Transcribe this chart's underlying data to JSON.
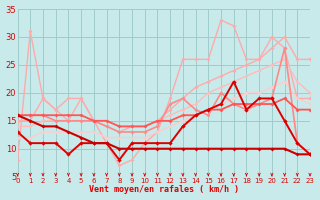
{
  "x": [
    0,
    1,
    2,
    3,
    4,
    5,
    6,
    7,
    8,
    9,
    10,
    11,
    12,
    13,
    14,
    15,
    16,
    17,
    18,
    19,
    20,
    21,
    22,
    23
  ],
  "lines": [
    {
      "y": [
        8,
        31,
        19,
        17,
        15,
        19,
        15,
        11,
        7,
        8,
        11,
        13,
        19,
        26,
        26,
        26,
        33,
        32,
        26,
        26,
        30,
        28,
        19,
        19
      ],
      "color": "#ffaaaa",
      "lw": 1.0,
      "ms": 2.0
    },
    {
      "y": [
        15,
        15,
        19,
        17,
        19,
        19,
        15,
        14,
        13,
        14,
        14,
        15,
        17,
        19,
        21,
        22,
        23,
        24,
        25,
        26,
        28,
        30,
        26,
        26
      ],
      "color": "#ffaaaa",
      "lw": 1.0,
      "ms": 2.0
    },
    {
      "y": [
        14,
        14,
        15,
        15,
        15,
        15,
        15,
        15,
        14,
        14,
        14,
        15,
        16,
        17,
        18,
        20,
        21,
        22,
        23,
        24,
        25,
        26,
        22,
        20
      ],
      "color": "#ffbbbb",
      "lw": 1.0,
      "ms": 1.8
    },
    {
      "y": [
        12,
        12,
        13,
        13,
        13,
        13,
        13,
        12,
        12,
        12,
        12,
        13,
        14,
        15,
        16,
        17,
        18,
        19,
        20,
        20,
        21,
        22,
        19,
        18
      ],
      "color": "#ffcccc",
      "lw": 1.0,
      "ms": 1.8
    },
    {
      "y": [
        16,
        16,
        16,
        15,
        15,
        15,
        15,
        14,
        13,
        13,
        13,
        14,
        18,
        19,
        17,
        16,
        20,
        18,
        17,
        18,
        19,
        28,
        11,
        9
      ],
      "color": "#ff8888",
      "lw": 1.2,
      "ms": 2.0
    },
    {
      "y": [
        16,
        16,
        16,
        16,
        16,
        16,
        15,
        15,
        14,
        14,
        14,
        15,
        15,
        16,
        16,
        17,
        17,
        18,
        18,
        18,
        18,
        19,
        17,
        17
      ],
      "color": "#ff5555",
      "lw": 1.3,
      "ms": 2.0
    },
    {
      "y": [
        13,
        11,
        11,
        11,
        9,
        11,
        11,
        11,
        8,
        11,
        11,
        11,
        11,
        14,
        16,
        17,
        18,
        22,
        17,
        19,
        19,
        15,
        11,
        9
      ],
      "color": "#dd0000",
      "lw": 1.4,
      "ms": 2.2
    },
    {
      "y": [
        16,
        15,
        14,
        14,
        13,
        12,
        11,
        11,
        10,
        10,
        10,
        10,
        10,
        10,
        10,
        10,
        10,
        10,
        10,
        10,
        10,
        10,
        9,
        9
      ],
      "color": "#cc0000",
      "lw": 1.5,
      "ms": 2.0
    }
  ],
  "bg_color": "#c8eaea",
  "grid_color": "#a0cccc",
  "text_color": "#dd0000",
  "xlabel": "Vent moyen/en rafales ( km/h )",
  "xlim": [
    0,
    23
  ],
  "ylim": [
    5,
    35
  ],
  "yticks": [
    5,
    10,
    15,
    20,
    25,
    30,
    35
  ],
  "xticks": [
    0,
    1,
    2,
    3,
    4,
    5,
    6,
    7,
    8,
    9,
    10,
    11,
    12,
    13,
    14,
    15,
    16,
    17,
    18,
    19,
    20,
    21,
    22,
    23
  ]
}
